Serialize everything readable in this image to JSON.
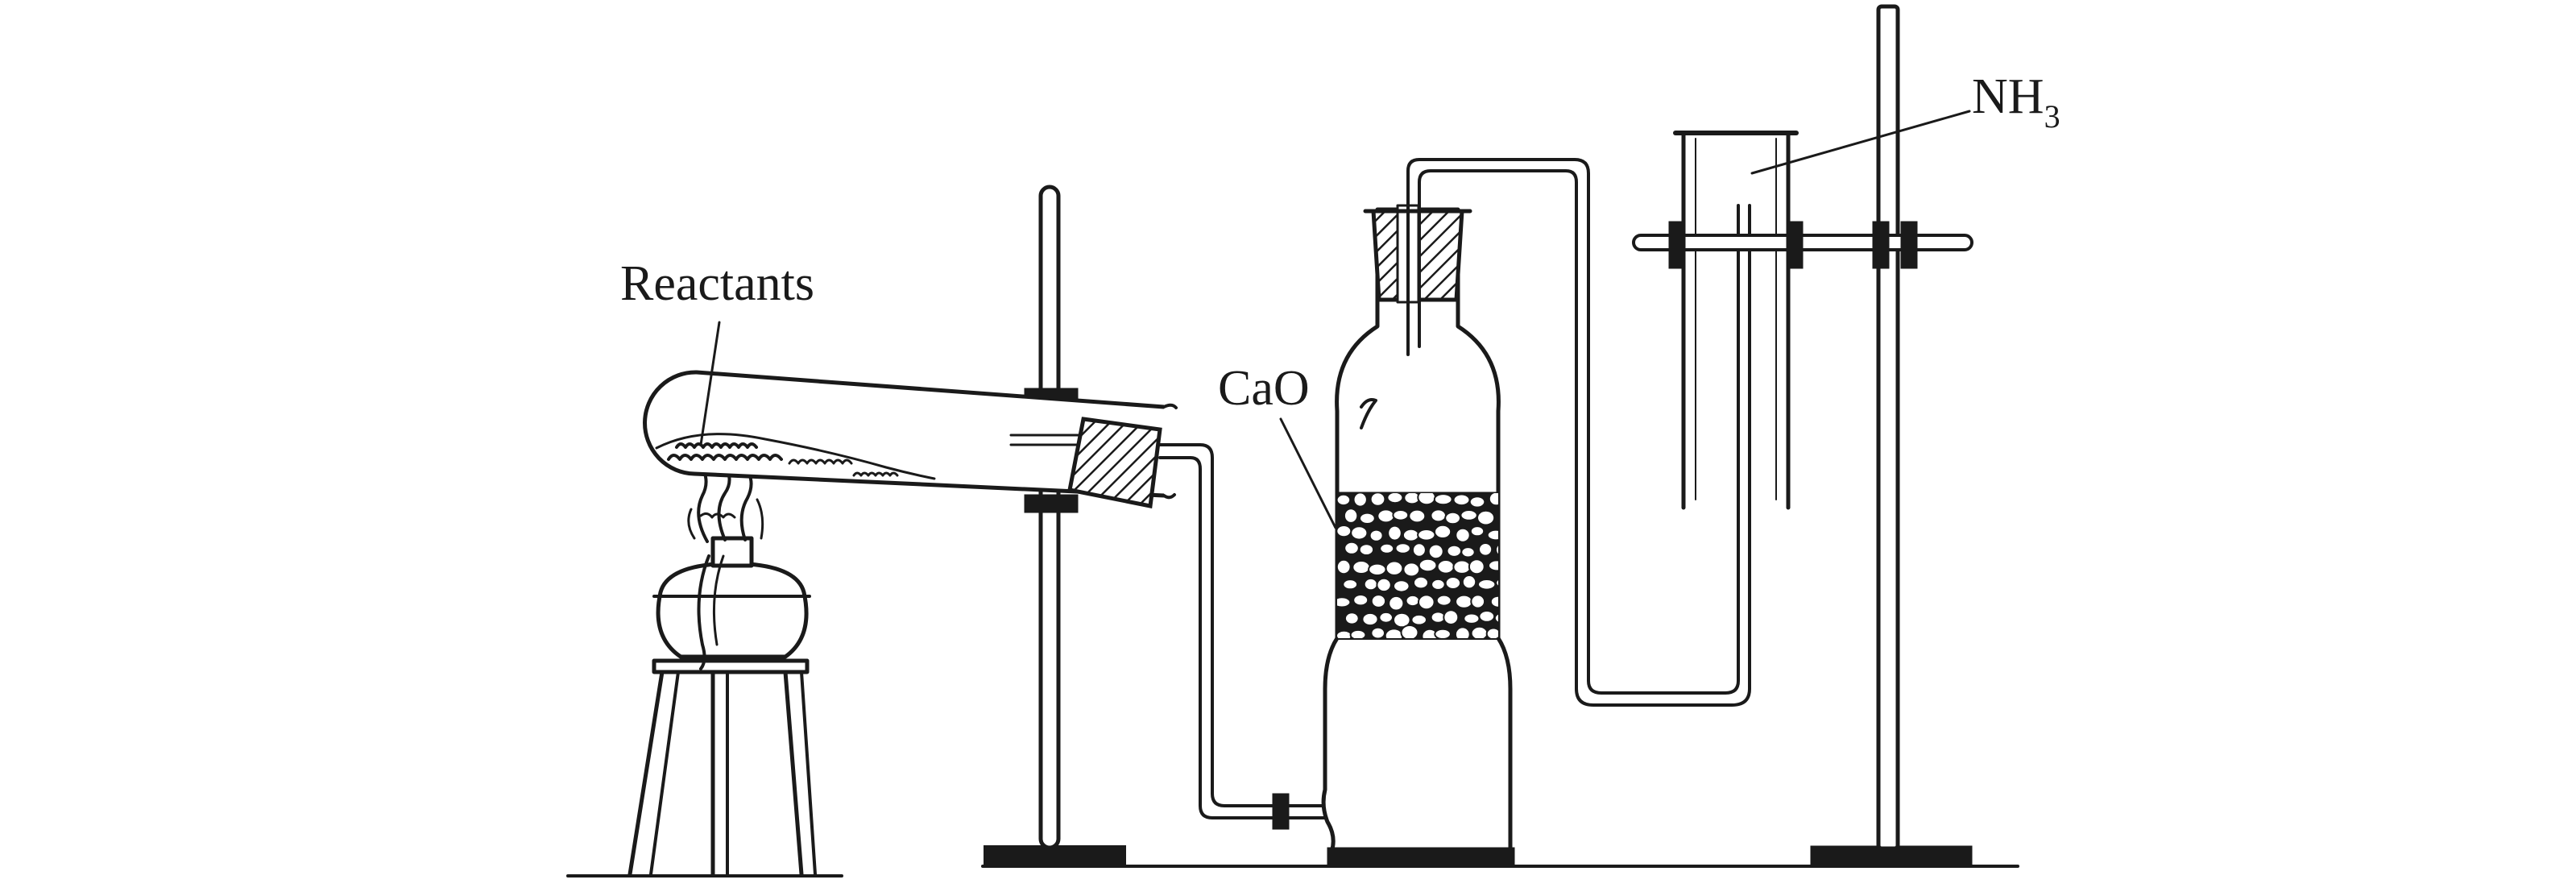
{
  "labels": {
    "reactants": "Reactants",
    "cao": "CaO",
    "nh3_main": "NH",
    "nh3_sub": "3"
  },
  "colors": {
    "ink": "#1a1a1a",
    "background": "#ffffff"
  }
}
